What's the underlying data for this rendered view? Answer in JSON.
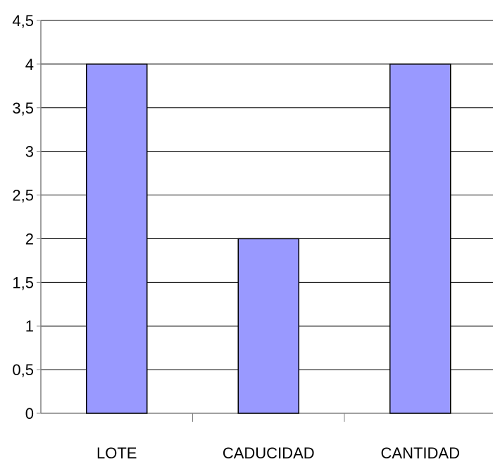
{
  "chart_data": {
    "type": "bar",
    "categories": [
      "LOTE",
      "CADUCIDAD",
      "CANTIDAD"
    ],
    "values": [
      4,
      2,
      4
    ],
    "title": "",
    "xlabel": "",
    "ylabel": "",
    "ylim": [
      0,
      4.5
    ],
    "yticks": [
      "0",
      "0,5",
      "1",
      "1,5",
      "2",
      "2,5",
      "3",
      "3,5",
      "4",
      "4,5"
    ],
    "grid": true,
    "legend": "none",
    "colors": {
      "bar_fill": "#9999ff",
      "bar_stroke": "#000000",
      "grid": "#000000",
      "axis": "#808080"
    }
  }
}
